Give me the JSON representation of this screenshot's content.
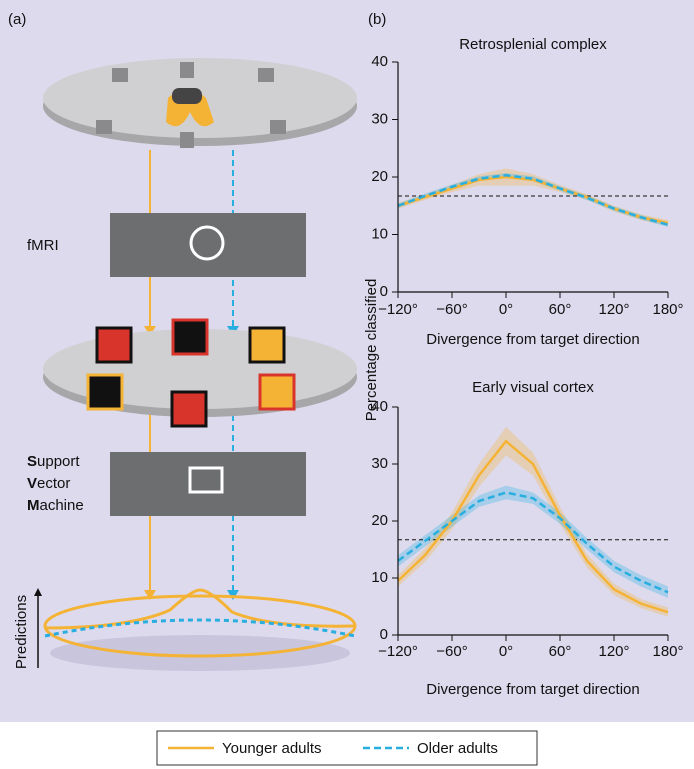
{
  "panel_a": {
    "label": "(a)",
    "box1": "fMRI",
    "box2": [
      "Support",
      "Vector",
      "Machine"
    ],
    "axis_label": "Predictions"
  },
  "panel_b": {
    "label": "(b)"
  },
  "chart_data": [
    {
      "type": "line",
      "title": "Retrosplenial complex",
      "xlabel": "Divergence from target direction",
      "ylabel": "Percentage classified",
      "x": [
        -120,
        -90,
        -60,
        -30,
        0,
        30,
        60,
        90,
        120,
        150,
        180
      ],
      "xlim": [
        -120,
        180
      ],
      "xticks": [
        {
          "value": -120,
          "label": "−120°"
        },
        {
          "value": -60,
          "label": "−60°"
        },
        {
          "value": 0,
          "label": "0°"
        },
        {
          "value": 60,
          "label": "60°"
        },
        {
          "value": 120,
          "label": "120°"
        },
        {
          "value": 180,
          "label": "180°"
        }
      ],
      "ylim": [
        0,
        40
      ],
      "yticks": [
        0,
        10,
        20,
        30,
        40
      ],
      "reference_line": 16.7,
      "series": [
        {
          "name": "Younger adults",
          "color": "#f5b335",
          "dash": false,
          "values": [
            15,
            16.5,
            18,
            19.5,
            20,
            19.5,
            18,
            16.5,
            14.5,
            13,
            12
          ],
          "errors": [
            0.5,
            0.5,
            0.6,
            1,
            1.5,
            1,
            0.6,
            0.5,
            0.5,
            0.5,
            0.5
          ]
        },
        {
          "name": "Older adults",
          "color": "#29aee0",
          "dash": true,
          "values": [
            15,
            16.7,
            18.3,
            19.7,
            20.3,
            19.7,
            18,
            16.4,
            14.5,
            13,
            11.7
          ],
          "errors": [
            0.4,
            0.4,
            0.4,
            0.4,
            0.4,
            0.4,
            0.4,
            0.4,
            0.4,
            0.4,
            0.4
          ]
        }
      ]
    },
    {
      "type": "line",
      "title": "Early visual cortex",
      "xlabel": "Divergence from target direction",
      "x": [
        -120,
        -90,
        -60,
        -30,
        0,
        30,
        60,
        90,
        120,
        150,
        180
      ],
      "xlim": [
        -120,
        180
      ],
      "xticks": [
        {
          "value": -120,
          "label": "−120°"
        },
        {
          "value": -60,
          "label": "−60°"
        },
        {
          "value": 0,
          "label": "0°"
        },
        {
          "value": 60,
          "label": "60°"
        },
        {
          "value": 120,
          "label": "120°"
        },
        {
          "value": 180,
          "label": "180°"
        }
      ],
      "ylim": [
        0,
        40
      ],
      "yticks": [
        0,
        10,
        20,
        30,
        40
      ],
      "reference_line": 16.7,
      "series": [
        {
          "name": "Younger adults",
          "color": "#f5b335",
          "dash": false,
          "values": [
            9.5,
            14,
            20,
            28,
            34,
            30,
            21,
            13,
            8,
            5.5,
            4
          ],
          "errors": [
            1,
            1.2,
            1.5,
            2,
            2.5,
            2,
            1.5,
            1.2,
            1,
            0.8,
            0.8
          ]
        },
        {
          "name": "Older adults",
          "color": "#29aee0",
          "dash": true,
          "values": [
            13,
            16.5,
            20,
            23.5,
            25,
            24,
            20.5,
            16,
            12,
            9.5,
            7.5
          ],
          "errors": [
            1,
            1,
            1,
            1,
            1.2,
            1,
            1,
            1,
            1,
            1,
            1
          ]
        }
      ]
    }
  ]
}
